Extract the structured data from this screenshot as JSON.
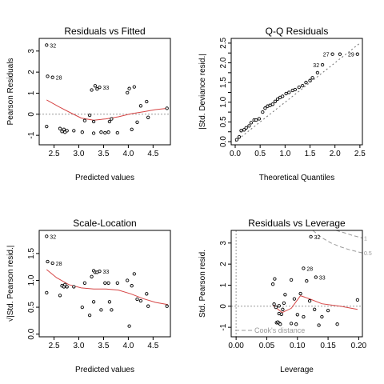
{
  "chart_data": [
    {
      "type": "scatter",
      "title": "Residuals vs Fitted",
      "xlabel": "Predicted values",
      "ylabel": "Pearson Residuals",
      "xlim": [
        2.2,
        4.85
      ],
      "ylim": [
        -1.45,
        3.6
      ],
      "xticks": [
        2.5,
        3.0,
        3.5,
        4.0,
        4.5
      ],
      "xtick_labels": [
        "2.5",
        "3.0",
        "3.5",
        "4.0",
        "4.5"
      ],
      "yticks": [
        -1,
        0,
        1,
        2,
        3
      ],
      "ytick_labels": [
        "-1",
        "0",
        "1",
        "2",
        "3"
      ],
      "hline": 0,
      "points": [
        {
          "x": 2.35,
          "y": 3.28
        },
        {
          "x": 2.37,
          "y": 1.8
        },
        {
          "x": 2.47,
          "y": 1.75
        },
        {
          "x": 2.35,
          "y": -0.58
        },
        {
          "x": 2.62,
          "y": -0.68
        },
        {
          "x": 2.66,
          "y": -0.82
        },
        {
          "x": 2.7,
          "y": -0.72
        },
        {
          "x": 2.72,
          "y": -0.85
        },
        {
          "x": 2.76,
          "y": -0.78
        },
        {
          "x": 2.9,
          "y": -0.78
        },
        {
          "x": 3.07,
          "y": -0.85
        },
        {
          "x": 3.12,
          "y": -0.3
        },
        {
          "x": 3.22,
          "y": -0.05
        },
        {
          "x": 3.26,
          "y": 1.15
        },
        {
          "x": 3.3,
          "y": -0.35
        },
        {
          "x": 3.3,
          "y": -0.9
        },
        {
          "x": 3.33,
          "y": 1.35
        },
        {
          "x": 3.37,
          "y": 1.2
        },
        {
          "x": 3.42,
          "y": 1.28
        },
        {
          "x": 3.45,
          "y": -0.85
        },
        {
          "x": 3.53,
          "y": -0.88
        },
        {
          "x": 3.6,
          "y": -0.85
        },
        {
          "x": 3.62,
          "y": -0.35
        },
        {
          "x": 3.66,
          "y": -0.22
        },
        {
          "x": 3.78,
          "y": -0.88
        },
        {
          "x": 3.98,
          "y": 1.02
        },
        {
          "x": 4.02,
          "y": 1.22
        },
        {
          "x": 4.07,
          "y": -0.72
        },
        {
          "x": 4.12,
          "y": 1.3
        },
        {
          "x": 4.18,
          "y": -0.38
        },
        {
          "x": 4.25,
          "y": 0.4
        },
        {
          "x": 4.37,
          "y": 0.6
        },
        {
          "x": 4.4,
          "y": -0.15
        },
        {
          "x": 4.78,
          "y": 0.28
        }
      ],
      "labels": [
        {
          "x": 2.35,
          "y": 3.28,
          "text": "32"
        },
        {
          "x": 2.47,
          "y": 1.75,
          "text": "28"
        },
        {
          "x": 3.42,
          "y": 1.28,
          "text": "33"
        }
      ],
      "smooth": [
        [
          2.35,
          0.68
        ],
        [
          2.6,
          0.35
        ],
        [
          2.85,
          0.05
        ],
        [
          3.05,
          -0.18
        ],
        [
          3.3,
          -0.28
        ],
        [
          3.55,
          -0.22
        ],
        [
          3.8,
          -0.12
        ],
        [
          4.05,
          0.02
        ],
        [
          4.3,
          0.12
        ],
        [
          4.55,
          0.22
        ],
        [
          4.8,
          0.28
        ]
      ]
    },
    {
      "type": "scatter",
      "title": "Q-Q Residuals",
      "xlabel": "Theoretical Quantiles",
      "ylabel": "|Std. Deviance resid.|",
      "xlim": [
        -0.08,
        2.55
      ],
      "ylim": [
        -0.08,
        2.62
      ],
      "xticks": [
        0.0,
        0.5,
        1.0,
        1.5,
        2.0,
        2.5
      ],
      "xtick_labels": [
        "0.0",
        "0.5",
        "1.0",
        "1.5",
        "2.0",
        "2.5"
      ],
      "yticks": [
        0.0,
        0.25,
        0.5,
        0.75,
        1.0,
        1.25,
        1.5,
        1.75,
        2.0,
        2.25,
        2.5
      ],
      "ytick_labels": [
        "0.0",
        "0.5",
        "1.0",
        "1.5",
        "2.0",
        "2.5"
      ],
      "ytick_rotated": true,
      "refline": [
        [
          0.0,
          0.0
        ],
        [
          2.5,
          2.5
        ]
      ],
      "points": [
        {
          "x": 0.03,
          "y": 0.05
        },
        {
          "x": 0.08,
          "y": 0.12
        },
        {
          "x": 0.12,
          "y": 0.28
        },
        {
          "x": 0.18,
          "y": 0.3
        },
        {
          "x": 0.22,
          "y": 0.35
        },
        {
          "x": 0.28,
          "y": 0.4
        },
        {
          "x": 0.32,
          "y": 0.48
        },
        {
          "x": 0.38,
          "y": 0.55
        },
        {
          "x": 0.42,
          "y": 0.55
        },
        {
          "x": 0.48,
          "y": 0.58
        },
        {
          "x": 0.55,
          "y": 0.75
        },
        {
          "x": 0.6,
          "y": 0.85
        },
        {
          "x": 0.65,
          "y": 0.9
        },
        {
          "x": 0.7,
          "y": 0.92
        },
        {
          "x": 0.75,
          "y": 0.95
        },
        {
          "x": 0.8,
          "y": 1.02
        },
        {
          "x": 0.85,
          "y": 1.08
        },
        {
          "x": 0.9,
          "y": 1.12
        },
        {
          "x": 0.95,
          "y": 1.15
        },
        {
          "x": 1.02,
          "y": 1.22
        },
        {
          "x": 1.08,
          "y": 1.25
        },
        {
          "x": 1.15,
          "y": 1.3
        },
        {
          "x": 1.2,
          "y": 1.32
        },
        {
          "x": 1.28,
          "y": 1.38
        },
        {
          "x": 1.35,
          "y": 1.42
        },
        {
          "x": 1.42,
          "y": 1.5
        },
        {
          "x": 1.5,
          "y": 1.55
        },
        {
          "x": 1.55,
          "y": 1.62
        },
        {
          "x": 1.65,
          "y": 1.75
        },
        {
          "x": 1.75,
          "y": 1.95
        },
        {
          "x": 1.95,
          "y": 2.22
        },
        {
          "x": 2.1,
          "y": 2.22
        },
        {
          "x": 2.45,
          "y": 2.22
        }
      ],
      "labels": [
        {
          "x": 1.75,
          "y": 1.95,
          "text": "32"
        },
        {
          "x": 1.95,
          "y": 2.22,
          "text": "27"
        },
        {
          "x": 2.45,
          "y": 2.22,
          "text": "29"
        }
      ]
    },
    {
      "type": "scatter",
      "title": "Scale-Location",
      "xlabel": "Predicted values",
      "ylabel": "√|Std. Pearson resid.|",
      "xlim": [
        2.2,
        4.85
      ],
      "ylim": [
        -0.05,
        1.93
      ],
      "xticks": [
        2.5,
        3.0,
        3.5,
        4.0,
        4.5
      ],
      "xtick_labels": [
        "2.5",
        "3.0",
        "3.5",
        "4.0",
        "4.5"
      ],
      "yticks": [
        0.0,
        0.5,
        1.0,
        1.5
      ],
      "ytick_labels": [
        "0.0",
        "0.5",
        "1.0",
        "1.5"
      ],
      "points": [
        {
          "x": 2.35,
          "y": 1.82
        },
        {
          "x": 2.37,
          "y": 1.35
        },
        {
          "x": 2.47,
          "y": 1.32
        },
        {
          "x": 2.35,
          "y": 0.77
        },
        {
          "x": 2.62,
          "y": 0.72
        },
        {
          "x": 2.66,
          "y": 0.9
        },
        {
          "x": 2.7,
          "y": 0.88
        },
        {
          "x": 2.72,
          "y": 0.92
        },
        {
          "x": 2.76,
          "y": 0.88
        },
        {
          "x": 2.9,
          "y": 0.88
        },
        {
          "x": 3.07,
          "y": 0.5
        },
        {
          "x": 3.12,
          "y": 0.95
        },
        {
          "x": 3.22,
          "y": 0.35
        },
        {
          "x": 3.26,
          "y": 1.07
        },
        {
          "x": 3.3,
          "y": 1.18
        },
        {
          "x": 3.3,
          "y": 0.6
        },
        {
          "x": 3.33,
          "y": 1.15
        },
        {
          "x": 3.37,
          "y": 1.15
        },
        {
          "x": 3.42,
          "y": 1.17
        },
        {
          "x": 3.45,
          "y": 0.45
        },
        {
          "x": 3.53,
          "y": 0.95
        },
        {
          "x": 3.6,
          "y": 0.95
        },
        {
          "x": 3.62,
          "y": 0.6
        },
        {
          "x": 3.66,
          "y": 0.45
        },
        {
          "x": 3.78,
          "y": 0.95
        },
        {
          "x": 3.98,
          "y": 1.0
        },
        {
          "x": 4.02,
          "y": 0.15
        },
        {
          "x": 4.07,
          "y": 0.9
        },
        {
          "x": 4.12,
          "y": 1.12
        },
        {
          "x": 4.18,
          "y": 0.65
        },
        {
          "x": 4.25,
          "y": 0.62
        },
        {
          "x": 4.37,
          "y": 0.75
        },
        {
          "x": 4.4,
          "y": 0.52
        },
        {
          "x": 4.78,
          "y": 0.52
        }
      ],
      "labels": [
        {
          "x": 2.35,
          "y": 1.82,
          "text": "32"
        },
        {
          "x": 2.47,
          "y": 1.32,
          "text": "28"
        },
        {
          "x": 3.42,
          "y": 1.17,
          "text": "33"
        }
      ],
      "smooth": [
        [
          2.35,
          1.2
        ],
        [
          2.55,
          1.05
        ],
        [
          2.8,
          0.92
        ],
        [
          3.05,
          0.86
        ],
        [
          3.3,
          0.84
        ],
        [
          3.55,
          0.84
        ],
        [
          3.8,
          0.82
        ],
        [
          4.05,
          0.75
        ],
        [
          4.3,
          0.66
        ],
        [
          4.55,
          0.59
        ],
        [
          4.8,
          0.55
        ]
      ]
    },
    {
      "type": "scatter",
      "title": "Residuals vs Leverage",
      "xlabel": "Leverage",
      "ylabel": "Std. Pearson resid.",
      "xlim": [
        -0.008,
        0.206
      ],
      "ylim": [
        -1.45,
        3.6
      ],
      "xticks": [
        0.0,
        0.05,
        0.1,
        0.15,
        0.2
      ],
      "xtick_labels": [
        "0.00",
        "0.05",
        "0.10",
        "0.15",
        "0.20"
      ],
      "yticks": [
        -1,
        0,
        1,
        2,
        3
      ],
      "ytick_labels": [
        "-1",
        "0",
        "1",
        "2",
        "3"
      ],
      "hline": 0,
      "vline": 0,
      "cook_label": "Cook's distance",
      "cook_levels": [
        "0.5",
        "1"
      ],
      "cook_curves": [
        [
          [
            0.125,
            3.6
          ],
          [
            0.14,
            3.25
          ],
          [
            0.155,
            3.0
          ],
          [
            0.17,
            2.82
          ],
          [
            0.185,
            2.68
          ],
          [
            0.206,
            2.53
          ]
        ],
        [
          [
            0.163,
            3.6
          ],
          [
            0.175,
            3.5
          ],
          [
            0.19,
            3.36
          ],
          [
            0.206,
            3.24
          ]
        ]
      ],
      "points": [
        {
          "x": 0.06,
          "y": 1.05
        },
        {
          "x": 0.063,
          "y": 1.3
        },
        {
          "x": 0.062,
          "y": 0.1
        },
        {
          "x": 0.065,
          "y": -0.05
        },
        {
          "x": 0.07,
          "y": 0.02
        },
        {
          "x": 0.066,
          "y": -0.78
        },
        {
          "x": 0.068,
          "y": -0.75
        },
        {
          "x": 0.07,
          "y": -0.8
        },
        {
          "x": 0.072,
          "y": -0.85
        },
        {
          "x": 0.07,
          "y": -0.35
        },
        {
          "x": 0.074,
          "y": -0.38
        },
        {
          "x": 0.076,
          "y": -0.15
        },
        {
          "x": 0.078,
          "y": 0.15
        },
        {
          "x": 0.08,
          "y": 0.55
        },
        {
          "x": 0.09,
          "y": -0.82
        },
        {
          "x": 0.09,
          "y": 1.25
        },
        {
          "x": 0.095,
          "y": 0.35
        },
        {
          "x": 0.098,
          "y": -0.85
        },
        {
          "x": 0.1,
          "y": -0.4
        },
        {
          "x": 0.105,
          "y": 0.6
        },
        {
          "x": 0.11,
          "y": 1.8
        },
        {
          "x": 0.11,
          "y": -0.5
        },
        {
          "x": 0.115,
          "y": 1.2
        },
        {
          "x": 0.12,
          "y": 0.25
        },
        {
          "x": 0.122,
          "y": 3.3
        },
        {
          "x": 0.128,
          "y": -0.15
        },
        {
          "x": 0.13,
          "y": 1.38
        },
        {
          "x": 0.135,
          "y": -0.9
        },
        {
          "x": 0.14,
          "y": -0.5
        },
        {
          "x": 0.15,
          "y": -0.2
        },
        {
          "x": 0.165,
          "y": -0.85
        },
        {
          "x": 0.198,
          "y": 0.3
        }
      ],
      "labels": [
        {
          "x": 0.122,
          "y": 3.3,
          "text": "32"
        },
        {
          "x": 0.11,
          "y": 1.8,
          "text": "28"
        },
        {
          "x": 0.13,
          "y": 1.38,
          "text": "33"
        }
      ],
      "smooth": [
        [
          0.06,
          0.05
        ],
        [
          0.075,
          -0.3
        ],
        [
          0.09,
          -0.1
        ],
        [
          0.105,
          0.5
        ],
        [
          0.12,
          0.35
        ],
        [
          0.14,
          0.12
        ],
        [
          0.17,
          0.0
        ],
        [
          0.198,
          -0.15
        ]
      ]
    }
  ]
}
